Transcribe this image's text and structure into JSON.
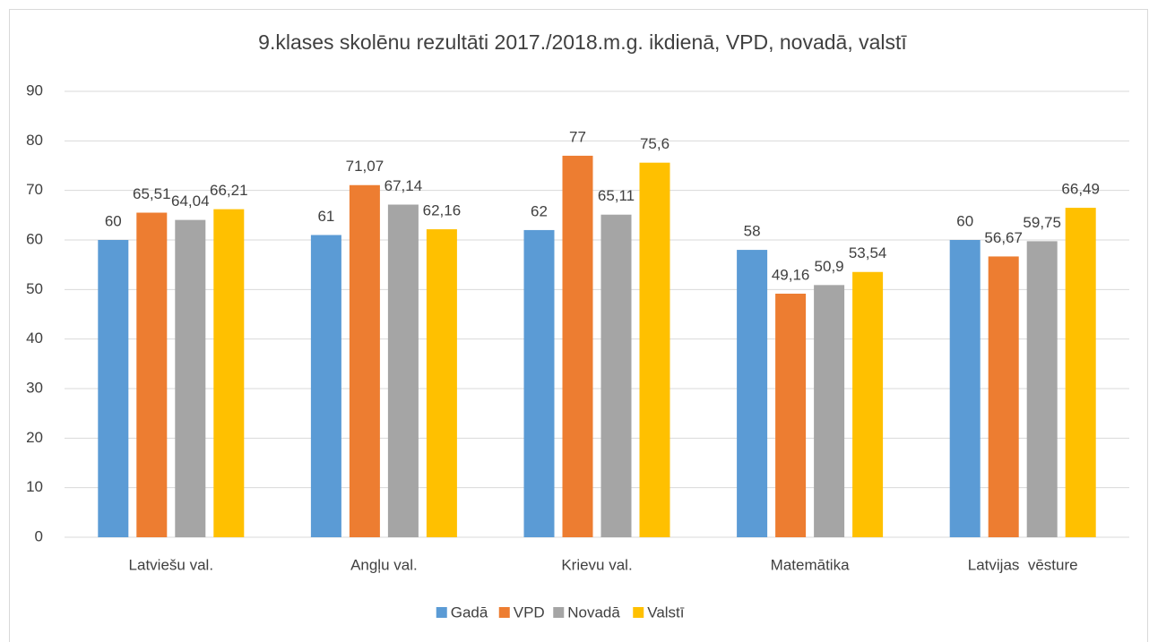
{
  "chart_data": {
    "type": "bar",
    "title": "9.klases skolēnu rezultāti 2017./2018.m.g. ikdienā, VPD, novadā, valstī",
    "categories": [
      "Latviešu val.",
      "Angļu val.",
      "Krievu val.",
      "Matemātika",
      "Latvijas  vēsture"
    ],
    "series": [
      {
        "name": "Gadā",
        "color": "#5b9bd5",
        "values": [
          60,
          61,
          62,
          58,
          60
        ],
        "value_labels": [
          "60",
          "61",
          "62",
          "58",
          "60"
        ]
      },
      {
        "name": "VPD",
        "color": "#ed7d31",
        "values": [
          65.51,
          71.07,
          77,
          49.16,
          56.67
        ],
        "value_labels": [
          "65,51",
          "71,07",
          "77",
          "49,16",
          "56,67"
        ]
      },
      {
        "name": "Novadā",
        "color": "#a5a5a5",
        "values": [
          64.04,
          67.14,
          65.11,
          50.9,
          59.75
        ],
        "value_labels": [
          "64,04",
          "67,14",
          "65,11",
          "50,9",
          "59,75"
        ]
      },
      {
        "name": "Valstī",
        "color": "#ffc000",
        "values": [
          66.21,
          62.16,
          75.6,
          53.54,
          66.49
        ],
        "value_labels": [
          "66,21",
          "62,16",
          "75,6",
          "53,54",
          "66,49"
        ]
      }
    ],
    "ylim": [
      0,
      90
    ],
    "yticks": [
      0,
      10,
      20,
      30,
      40,
      50,
      60,
      70,
      80,
      90
    ],
    "grid": true,
    "legend": "bottom"
  }
}
